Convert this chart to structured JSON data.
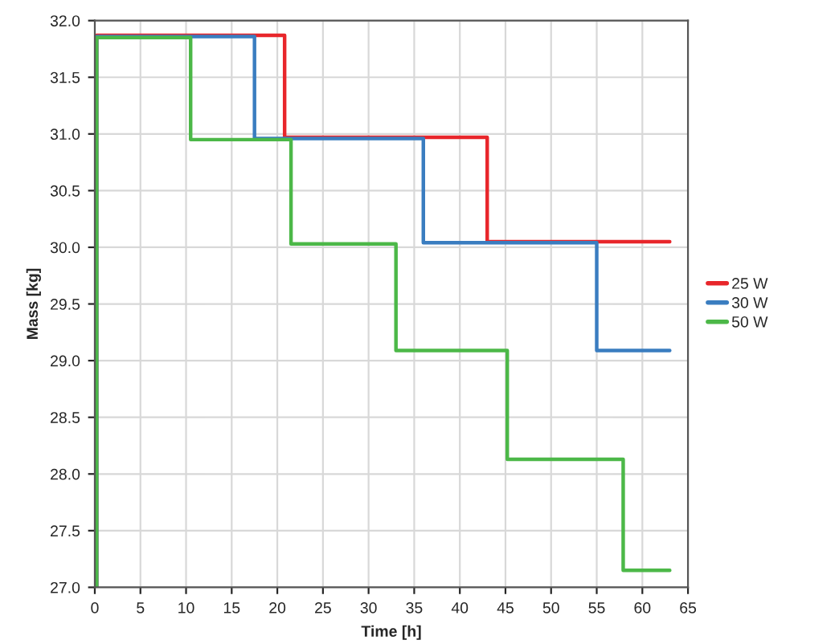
{
  "chart_data": {
    "type": "step",
    "xlabel": "Time [h]",
    "ylabel": "Mass [kg]",
    "xlim": [
      0,
      65
    ],
    "xticks": [
      0,
      5,
      10,
      15,
      20,
      25,
      30,
      35,
      40,
      45,
      50,
      55,
      60,
      65
    ],
    "ylim": [
      27.0,
      32.0
    ],
    "yticks": [
      {
        "value": 27.0,
        "label": "27.0"
      },
      {
        "value": 27.5,
        "label": "27.5"
      },
      {
        "value": 28.0,
        "label": "28.0"
      },
      {
        "value": 28.5,
        "label": "28.5"
      },
      {
        "value": 29.0,
        "label": "29.0"
      },
      {
        "value": 29.5,
        "label": "29.5"
      },
      {
        "value": 30.0,
        "label": "30.0"
      },
      {
        "value": 30.5,
        "label": "30.5"
      },
      {
        "value": 31.0,
        "label": "31.0"
      },
      {
        "value": 31.5,
        "label": "31.5"
      },
      {
        "value": 32.0,
        "label": "32.0"
      }
    ],
    "grid": true,
    "legend": "right",
    "series": [
      {
        "name": "25 W",
        "color": "#e8262b",
        "x": [
          0,
          0.2,
          20.8,
          43,
          63
        ],
        "values": [
          27.0,
          31.87,
          30.97,
          30.05,
          30.05
        ]
      },
      {
        "name": "30 W",
        "color": "#3a7dc0",
        "x": [
          0,
          0.2,
          17.5,
          36,
          55,
          63
        ],
        "values": [
          27.0,
          31.86,
          30.96,
          30.04,
          29.09,
          29.09
        ]
      },
      {
        "name": "50 W",
        "color": "#4cb848",
        "x": [
          0,
          0.2,
          10.5,
          21.5,
          33,
          45.2,
          57.9,
          63
        ],
        "values": [
          27.0,
          31.85,
          30.95,
          30.03,
          29.09,
          28.13,
          27.15,
          27.15
        ]
      }
    ]
  }
}
